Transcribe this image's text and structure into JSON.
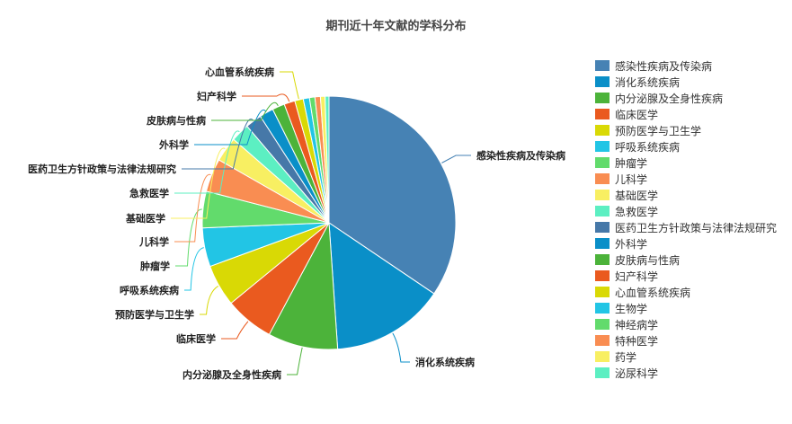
{
  "chart_data": {
    "type": "pie",
    "title": "期刊近十年文献的学科分布",
    "legend_position": "right",
    "slices": [
      {
        "label": "感染性疾病及传染病",
        "value": 34.8,
        "color": "#4682b4"
      },
      {
        "label": "消化系统疾病",
        "value": 14.6,
        "color": "#0a8fc8"
      },
      {
        "label": "内分泌腺及全身性疾病",
        "value": 9.0,
        "color": "#4cb33a"
      },
      {
        "label": "临床医学",
        "value": 6.3,
        "color": "#ea5a1f"
      },
      {
        "label": "预防医学与卫生学",
        "value": 5.4,
        "color": "#d9d905"
      },
      {
        "label": "呼吸系统疾病",
        "value": 5.0,
        "color": "#22c5e5"
      },
      {
        "label": "肿瘤学",
        "value": 4.7,
        "color": "#62db6c"
      },
      {
        "label": "儿科学",
        "value": 4.3,
        "color": "#f98d52"
      },
      {
        "label": "基础医学",
        "value": 3.2,
        "color": "#f8ef62"
      },
      {
        "label": "急救医学",
        "value": 2.4,
        "color": "#5cefc2"
      },
      {
        "label": "医药卫生方针政策与法律法规研究",
        "value": 2.1,
        "color": "#4678a8"
      },
      {
        "label": "外科学",
        "value": 1.8,
        "color": "#0a8fc8"
      },
      {
        "label": "皮肤病与性病",
        "value": 1.6,
        "color": "#4cb33a"
      },
      {
        "label": "妇产科学",
        "value": 1.4,
        "color": "#ea5a1f"
      },
      {
        "label": "心血管系统疾病",
        "value": 1.1,
        "color": "#d9d905"
      },
      {
        "label": "生物学",
        "value": 0.8,
        "color": "#22c5e5"
      },
      {
        "label": "神经病学",
        "value": 0.7,
        "color": "#62db6c"
      },
      {
        "label": "特种医学",
        "value": 0.7,
        "color": "#f98d52"
      },
      {
        "label": "药学",
        "value": 0.6,
        "color": "#f8ef62"
      },
      {
        "label": "泌尿科学",
        "value": 0.5,
        "color": "#5cefc2"
      }
    ],
    "callout_labels": [
      "感染性疾病及传染病",
      "消化系统疾病",
      "内分泌腺及全身性疾病",
      "临床医学",
      "预防医学与卫生学",
      "呼吸系统疾病",
      "肿瘤学",
      "儿科学",
      "基础医学",
      "急救医学",
      "医药卫生方针政策与法律法规研究",
      "外科学",
      "皮肤病与性病",
      "妇产科学",
      "心血管系统疾病"
    ]
  }
}
